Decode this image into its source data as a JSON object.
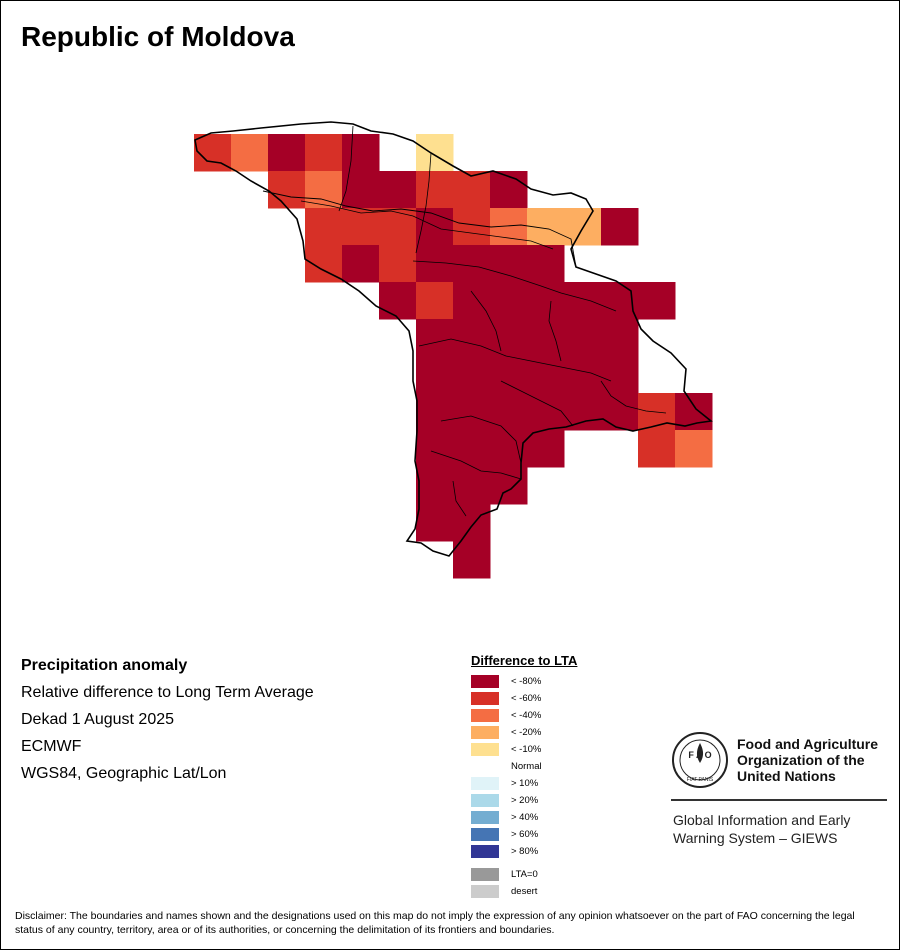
{
  "map": {
    "title": "Republic of Moldova"
  },
  "info": {
    "heading": "Precipitation anomaly",
    "lines": [
      "Relative difference to Long Term Average",
      "Dekad 1 August 2025",
      "ECMWF",
      "WGS84, Geographic Lat/Lon"
    ]
  },
  "legend": {
    "title": "Difference to LTA",
    "classes": [
      {
        "label": "< -80%",
        "color": "#a50026"
      },
      {
        "label": "< -60%",
        "color": "#d73027"
      },
      {
        "label": "< -40%",
        "color": "#f46d43"
      },
      {
        "label": "< -20%",
        "color": "#fdae61"
      },
      {
        "label": "< -10%",
        "color": "#fee090"
      },
      {
        "label": "Normal",
        "color": "#ffffff"
      },
      {
        "label": "> 10%",
        "color": "#e0f3f8"
      },
      {
        "label": "> 20%",
        "color": "#abd9e9"
      },
      {
        "label": "> 40%",
        "color": "#74add1"
      },
      {
        "label": "> 60%",
        "color": "#4575b4"
      },
      {
        "label": "> 80%",
        "color": "#313695"
      }
    ],
    "extra": [
      {
        "label": "LTA=0",
        "color": "#999999"
      },
      {
        "label": "desert",
        "color": "#cccccc"
      }
    ]
  },
  "organization": {
    "logo_text": "FAO",
    "logo_motto": "FIAT PANIS",
    "name_lines": [
      "Food and Agriculture",
      "Organization of the",
      "United Nations"
    ],
    "system_lines": [
      "Global Information and Early",
      "Warning System – GIEWS"
    ]
  },
  "disclaimer": "Disclaimer: The boundaries and names shown and the designations used on this map do not imply the expression of any opinion whatsoever on the part of FAO concerning the legal status of any country, territory, area or of its authorities, or concerning the delimitation of its frontiers and boundaries."
}
